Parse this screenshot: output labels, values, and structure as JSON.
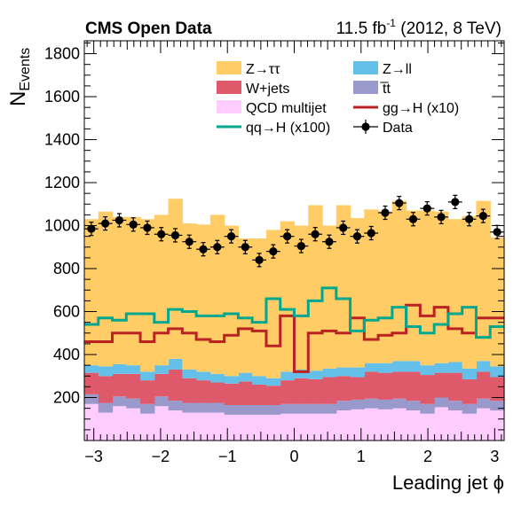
{
  "header": {
    "left": "CMS Open Data",
    "right_prefix": "11.5 fb",
    "right_sup": "-1",
    "right_suffix": " (2012, 8 TeV)"
  },
  "chart_data": {
    "type": "histogram-stack",
    "ylabel_main": "N",
    "ylabel_sub": "Events",
    "xlabel": "Leading jet  ϕ",
    "xlim": [
      -3.1416,
      3.1416
    ],
    "ylim": [
      0,
      1860
    ],
    "xticks": [
      -3,
      -2,
      -1,
      0,
      1,
      2,
      3
    ],
    "xtick_labels": [
      "−3",
      "−2",
      "−1",
      "0",
      "1",
      "2",
      "3"
    ],
    "yticks": [
      200,
      400,
      600,
      800,
      1000,
      1200,
      1400,
      1600,
      1800
    ],
    "ytick_labels": [
      "200",
      "400",
      "600",
      "800",
      "1000",
      "1200",
      "1400",
      "1600",
      "1800"
    ],
    "nbins": 30,
    "legend": [
      {
        "key": "ztt",
        "label": "Z→ττ",
        "kind": "fill",
        "color": "#ffcc66"
      },
      {
        "key": "zll",
        "label": "Z→ll",
        "kind": "fill",
        "color": "#64c0e8"
      },
      {
        "key": "wjets",
        "label": "W+jets",
        "kind": "fill",
        "color": "#de5a6a"
      },
      {
        "key": "tt",
        "label": "t̅t",
        "kind": "fill",
        "color": "#9999cc"
      },
      {
        "key": "qcd",
        "label": "QCD multijet",
        "kind": "fill",
        "color": "#ffccff"
      },
      {
        "key": "ggh",
        "label": "gg→H (x10)",
        "kind": "line",
        "color": "#bb2222"
      },
      {
        "key": "qqh",
        "label": "qq→H (x100)",
        "kind": "line",
        "color": "#00a88f"
      },
      {
        "key": "data",
        "label": "Data",
        "kind": "marker",
        "color": "#000000"
      }
    ],
    "stack": {
      "qcd": [
        170,
        130,
        160,
        150,
        125,
        160,
        140,
        130,
        130,
        130,
        120,
        120,
        120,
        120,
        125,
        125,
        125,
        125,
        140,
        145,
        150,
        145,
        150,
        140,
        125,
        155,
        140,
        125,
        150,
        140
      ],
      "tt": [
        45,
        45,
        45,
        45,
        45,
        45,
        45,
        45,
        45,
        45,
        45,
        45,
        45,
        45,
        45,
        45,
        45,
        45,
        45,
        45,
        45,
        45,
        45,
        45,
        45,
        45,
        45,
        45,
        45,
        45
      ],
      "wjets": [
        100,
        125,
        105,
        115,
        110,
        105,
        145,
        115,
        105,
        95,
        100,
        110,
        95,
        90,
        110,
        120,
        115,
        125,
        115,
        105,
        125,
        125,
        125,
        135,
        135,
        115,
        130,
        115,
        125,
        110
      ],
      "zll": [
        35,
        45,
        45,
        40,
        40,
        40,
        50,
        40,
        40,
        40,
        35,
        40,
        40,
        35,
        40,
        40,
        40,
        40,
        40,
        45,
        40,
        45,
        50,
        50,
        45,
        45,
        50,
        50,
        50,
        50
      ],
      "ztt": [
        680,
        720,
        685,
        690,
        710,
        700,
        745,
        680,
        685,
        740,
        700,
        625,
        640,
        690,
        700,
        670,
        770,
        665,
        755,
        695,
        715,
        705,
        745,
        700,
        720,
        705,
        665,
        710,
        745,
        600
      ]
    },
    "ggh": [
      460,
      460,
      500,
      500,
      460,
      500,
      520,
      500,
      470,
      460,
      490,
      520,
      510,
      440,
      580,
      320,
      500,
      510,
      500,
      570,
      470,
      490,
      500,
      630,
      580,
      620,
      520,
      500,
      570,
      570
    ],
    "qqh": [
      540,
      570,
      560,
      590,
      590,
      550,
      610,
      600,
      580,
      580,
      590,
      570,
      550,
      660,
      610,
      580,
      650,
      710,
      660,
      510,
      560,
      570,
      620,
      530,
      500,
      540,
      590,
      620,
      480,
      530
    ],
    "data": [
      985,
      1010,
      1025,
      1005,
      990,
      960,
      955,
      925,
      890,
      900,
      950,
      900,
      840,
      880,
      950,
      905,
      960,
      925,
      990,
      950,
      965,
      1060,
      1105,
      1030,
      1080,
      1040,
      1110,
      1030,
      1045,
      970
    ],
    "data_err": 31
  }
}
